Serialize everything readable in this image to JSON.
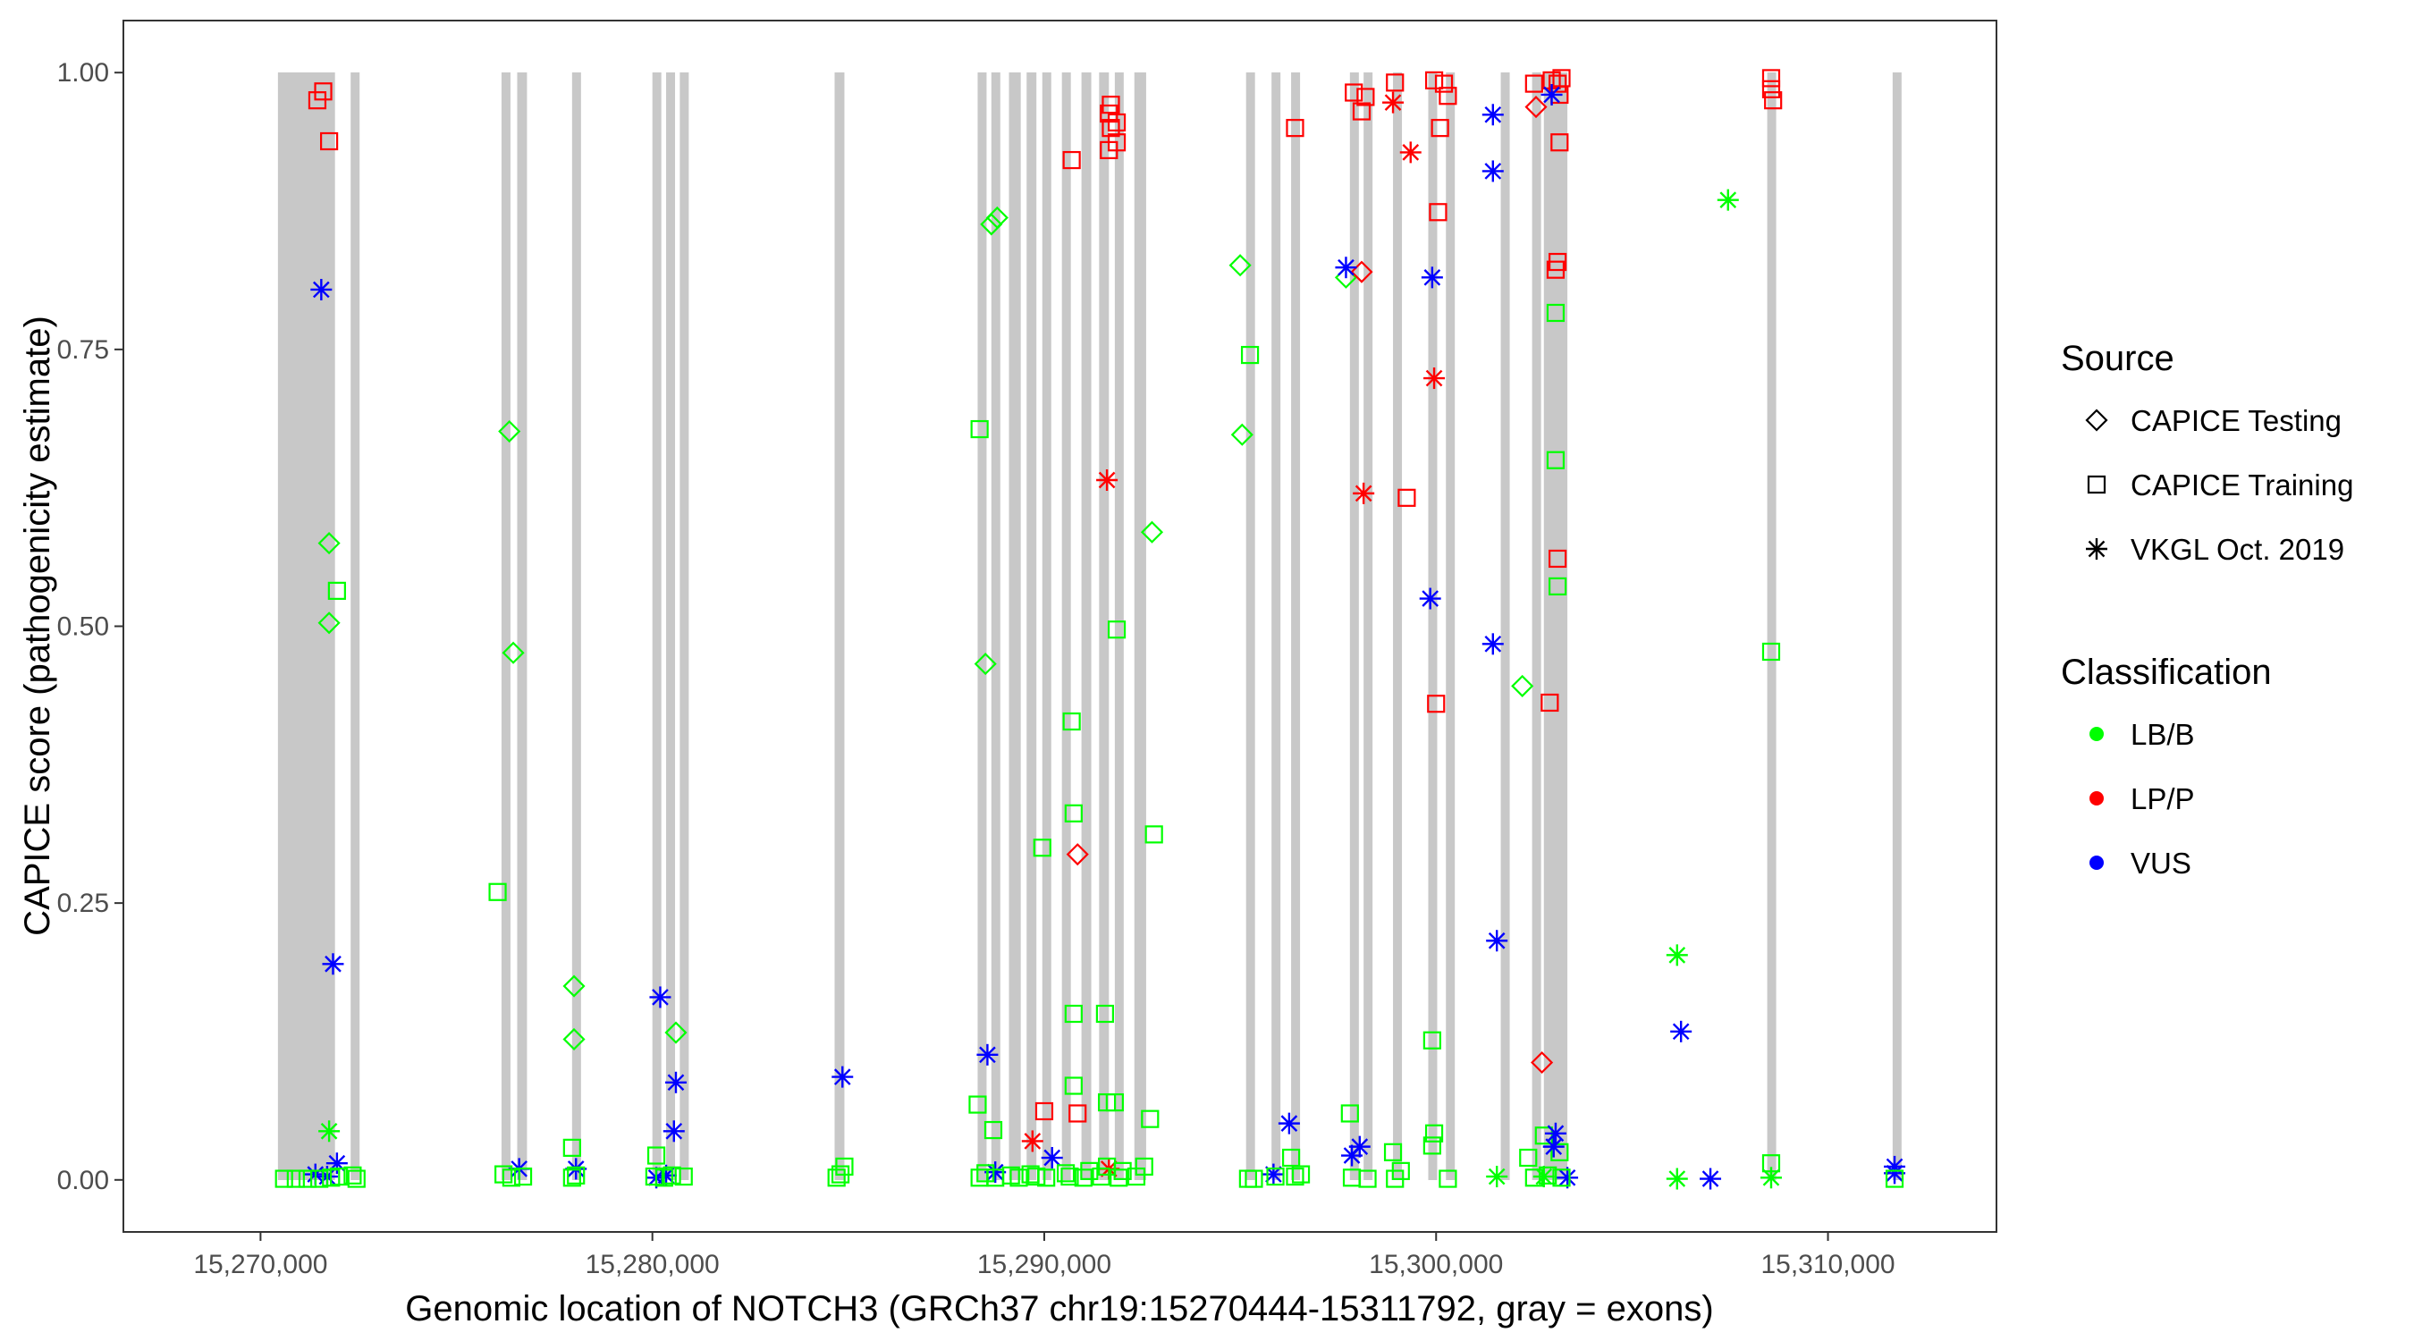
{
  "chart_data": {
    "type": "scatter",
    "xlabel": "Genomic location of NOTCH3 (GRCh37 chr19:15270444-15311792, gray = exons)",
    "ylabel": "CAPICE score (pathogenicity estimate)",
    "xlim": [
      15266500,
      15314300
    ],
    "ylim": [
      -0.047,
      1.047
    ],
    "x_ticks": [
      15270000,
      15280000,
      15290000,
      15300000,
      15310000
    ],
    "x_tick_labels": [
      "15,270,000",
      "15,280,000",
      "15,290,000",
      "15,300,000",
      "15,310,000"
    ],
    "y_ticks": [
      0,
      0.25,
      0.5,
      0.75,
      1
    ],
    "y_tick_labels": [
      "0.00",
      "0.25",
      "0.50",
      "0.75",
      "1.00"
    ],
    "grid": false,
    "legend_placement": "right",
    "exon_color": "#c8c8c8",
    "exons": [
      [
        15270444,
        15271900
      ],
      [
        15272300,
        15272450
      ],
      [
        15276150,
        15276300
      ],
      [
        15276550,
        15276800
      ],
      [
        15277950,
        15278100
      ],
      [
        15280000,
        15280200
      ],
      [
        15280350,
        15280500
      ],
      [
        15280700,
        15280850
      ],
      [
        15284650,
        15284900
      ],
      [
        15288300,
        15288500
      ],
      [
        15288650,
        15288800
      ],
      [
        15289100,
        15289400
      ],
      [
        15289550,
        15289800
      ],
      [
        15289950,
        15290150
      ],
      [
        15290450,
        15290650
      ],
      [
        15290950,
        15291200
      ],
      [
        15291400,
        15291650
      ],
      [
        15291800,
        15292000
      ],
      [
        15292300,
        15292600
      ],
      [
        15295150,
        15295300
      ],
      [
        15295800,
        15295950
      ],
      [
        15296300,
        15296500
      ],
      [
        15297800,
        15297950
      ],
      [
        15298150,
        15298300
      ],
      [
        15298900,
        15299050
      ],
      [
        15299800,
        15299950
      ],
      [
        15300250,
        15300400
      ],
      [
        15301650,
        15301800
      ],
      [
        15302450,
        15302650
      ],
      [
        15302750,
        15302900
      ],
      [
        15302950,
        15303350
      ],
      [
        15308450,
        15308600
      ],
      [
        15311650,
        15311792
      ]
    ],
    "legends": [
      {
        "title": "Source",
        "kind": "shape",
        "entries": [
          {
            "key": "T",
            "label": "CAPICE Testing"
          },
          {
            "key": "R",
            "label": "CAPICE Training"
          },
          {
            "key": "V",
            "label": "VKGL Oct. 2019"
          }
        ]
      },
      {
        "title": "Classification",
        "kind": "color",
        "entries": [
          {
            "key": "LB/B",
            "label": "LB/B"
          },
          {
            "key": "LP/P",
            "label": "LP/P"
          },
          {
            "key": "VUS",
            "label": "VUS"
          }
        ]
      }
    ],
    "class_colors": {
      "LB/B": "#00ff00",
      "LP/P": "#ff0000",
      "VUS": "#0000ff"
    },
    "series": [
      {
        "source": "T",
        "classification": "LB/B",
        "points": [
          [
            15271750,
            0.575
          ],
          [
            15271750,
            0.503
          ],
          [
            15276350,
            0.676
          ],
          [
            15276450,
            0.476
          ],
          [
            15278000,
            0.175
          ],
          [
            15278000,
            0.127
          ],
          [
            15280600,
            0.133
          ],
          [
            15288650,
            0.863
          ],
          [
            15288800,
            0.869
          ],
          [
            15288500,
            0.466
          ],
          [
            15292750,
            0.585
          ],
          [
            15295000,
            0.826
          ],
          [
            15295050,
            0.673
          ],
          [
            15297700,
            0.815
          ],
          [
            15302200,
            0.446
          ]
        ]
      },
      {
        "source": "T",
        "classification": "LP/P",
        "points": [
          [
            15290850,
            0.294
          ],
          [
            15298100,
            0.82
          ],
          [
            15302700,
            0.106
          ],
          [
            15302550,
            0.969
          ]
        ]
      },
      {
        "source": "R",
        "classification": "LB/B",
        "points": [
          [
            15271950,
            0.532
          ],
          [
            15276050,
            0.26
          ],
          [
            15277950,
            0.029
          ],
          [
            15280100,
            0.022
          ],
          [
            15288350,
            0.678
          ],
          [
            15288300,
            0.068
          ],
          [
            15288700,
            0.045
          ],
          [
            15289950,
            0.3
          ],
          [
            15290700,
            0.414
          ],
          [
            15290750,
            0.331
          ],
          [
            15290750,
            0.15
          ],
          [
            15291550,
            0.15
          ],
          [
            15290750,
            0.085
          ],
          [
            15291600,
            0.07
          ],
          [
            15291800,
            0.07
          ],
          [
            15291850,
            0.497
          ],
          [
            15292800,
            0.312
          ],
          [
            15292700,
            0.055
          ],
          [
            15295250,
            0.745
          ],
          [
            15296300,
            0.02
          ],
          [
            15297800,
            0.06
          ],
          [
            15298900,
            0.025
          ],
          [
            15299900,
            0.126
          ],
          [
            15299950,
            0.042
          ],
          [
            15302350,
            0.02
          ],
          [
            15302750,
            0.04
          ],
          [
            15303050,
            0.783
          ],
          [
            15303050,
            0.65
          ],
          [
            15303100,
            0.536
          ],
          [
            15303150,
            0.025
          ],
          [
            15308550,
            0.477
          ],
          [
            15308550,
            0.015
          ]
        ]
      },
      {
        "source": "R",
        "classification": "LP/P",
        "points": [
          [
            15271450,
            0.975
          ],
          [
            15271600,
            0.983
          ],
          [
            15271750,
            0.938
          ],
          [
            15290700,
            0.921
          ],
          [
            15291650,
            0.963
          ],
          [
            15291700,
            0.971
          ],
          [
            15291700,
            0.95
          ],
          [
            15291850,
            0.955
          ],
          [
            15291850,
            0.937
          ],
          [
            15291650,
            0.93
          ],
          [
            15290000,
            0.062
          ],
          [
            15290850,
            0.06
          ],
          [
            15296400,
            0.95
          ],
          [
            15297900,
            0.982
          ],
          [
            15298100,
            0.965
          ],
          [
            15298200,
            0.978
          ],
          [
            15298950,
            0.991
          ],
          [
            15299250,
            0.616
          ],
          [
            15299950,
            0.993
          ],
          [
            15300200,
            0.99
          ],
          [
            15300300,
            0.979
          ],
          [
            15300100,
            0.95
          ],
          [
            15300050,
            0.874
          ],
          [
            15300000,
            0.43
          ],
          [
            15302500,
            0.99
          ],
          [
            15302950,
            0.993
          ],
          [
            15303100,
            0.99
          ],
          [
            15303200,
            0.995
          ],
          [
            15303150,
            0.98
          ],
          [
            15303050,
            0.822
          ],
          [
            15303100,
            0.829
          ],
          [
            15303150,
            0.937
          ],
          [
            15303100,
            0.561
          ],
          [
            15302900,
            0.431
          ],
          [
            15308550,
            0.995
          ],
          [
            15308550,
            0.985
          ],
          [
            15308600,
            0.975
          ]
        ]
      },
      {
        "source": "V",
        "classification": "LB/B",
        "points": [
          [
            15271750,
            0.044
          ],
          [
            15307450,
            0.885
          ],
          [
            15306150,
            0.203
          ],
          [
            15302750,
            0.003
          ],
          [
            15301550,
            0.003
          ],
          [
            15306150,
            0.001
          ],
          [
            15308550,
            0.002
          ]
        ]
      },
      {
        "source": "V",
        "classification": "LP/P",
        "points": [
          [
            15291600,
            0.632
          ],
          [
            15298150,
            0.62
          ],
          [
            15299350,
            0.928
          ],
          [
            15298900,
            0.973
          ],
          [
            15299950,
            0.724
          ],
          [
            15289700,
            0.035
          ],
          [
            15291650,
            0.01
          ]
        ]
      },
      {
        "source": "V",
        "classification": "VUS",
        "points": [
          [
            15271550,
            0.804
          ],
          [
            15271850,
            0.195
          ],
          [
            15271950,
            0.015
          ],
          [
            15271400,
            0.005
          ],
          [
            15271700,
            0.003
          ],
          [
            15276600,
            0.01
          ],
          [
            15278050,
            0.01
          ],
          [
            15280200,
            0.165
          ],
          [
            15280600,
            0.088
          ],
          [
            15280550,
            0.044
          ],
          [
            15280100,
            0.002
          ],
          [
            15280350,
            0.004
          ],
          [
            15284850,
            0.093
          ],
          [
            15288550,
            0.113
          ],
          [
            15288750,
            0.007
          ],
          [
            15290200,
            0.02
          ],
          [
            15295850,
            0.005
          ],
          [
            15296250,
            0.051
          ],
          [
            15297700,
            0.824
          ],
          [
            15297850,
            0.022
          ],
          [
            15298050,
            0.03
          ],
          [
            15299900,
            0.815
          ],
          [
            15299850,
            0.525
          ],
          [
            15301450,
            0.962
          ],
          [
            15301450,
            0.911
          ],
          [
            15301450,
            0.484
          ],
          [
            15301550,
            0.216
          ],
          [
            15302950,
            0.98
          ],
          [
            15303050,
            0.042
          ],
          [
            15303000,
            0.03
          ],
          [
            15303350,
            0.002
          ],
          [
            15306250,
            0.134
          ],
          [
            15307000,
            0.001
          ],
          [
            15311700,
            0.012
          ],
          [
            15311700,
            0.006
          ]
        ]
      },
      {
        "source": "R",
        "classification": "LB/B",
        "baseline": true,
        "points": [
          [
            15270600,
            0.001
          ],
          [
            15270900,
            0.001
          ],
          [
            15271200,
            0.001
          ],
          [
            15271500,
            0.001
          ],
          [
            15271800,
            0.002
          ],
          [
            15272000,
            0.003
          ],
          [
            15272350,
            0.004
          ],
          [
            15272450,
            0.001
          ],
          [
            15276200,
            0.005
          ],
          [
            15276400,
            0.002
          ],
          [
            15276700,
            0.003
          ],
          [
            15277950,
            0.002
          ],
          [
            15278050,
            0.004
          ],
          [
            15280050,
            0.003
          ],
          [
            15280300,
            0.002
          ],
          [
            15280500,
            0.004
          ],
          [
            15280800,
            0.003
          ],
          [
            15284700,
            0.002
          ],
          [
            15284800,
            0.005
          ],
          [
            15284900,
            0.012
          ],
          [
            15288350,
            0.002
          ],
          [
            15288500,
            0.006
          ],
          [
            15288750,
            0.002
          ],
          [
            15289150,
            0.004
          ],
          [
            15289350,
            0.002
          ],
          [
            15289650,
            0.005
          ],
          [
            15289800,
            0.003
          ],
          [
            15290050,
            0.002
          ],
          [
            15290550,
            0.006
          ],
          [
            15290650,
            0.003
          ],
          [
            15291000,
            0.002
          ],
          [
            15291150,
            0.008
          ],
          [
            15291450,
            0.003
          ],
          [
            15291600,
            0.012
          ],
          [
            15291900,
            0.002
          ],
          [
            15292000,
            0.008
          ],
          [
            15292350,
            0.003
          ],
          [
            15292550,
            0.012
          ],
          [
            15295200,
            0.001
          ],
          [
            15295350,
            0.001
          ],
          [
            15295900,
            0.003
          ],
          [
            15296400,
            0.003
          ],
          [
            15296550,
            0.005
          ],
          [
            15297850,
            0.002
          ],
          [
            15298250,
            0.001
          ],
          [
            15298950,
            0.001
          ],
          [
            15299100,
            0.008
          ],
          [
            15299900,
            0.031
          ],
          [
            15300300,
            0.001
          ],
          [
            15302500,
            0.002
          ],
          [
            15302850,
            0.004
          ],
          [
            15303200,
            0.002
          ],
          [
            15311700,
            0.001
          ]
        ]
      }
    ]
  }
}
